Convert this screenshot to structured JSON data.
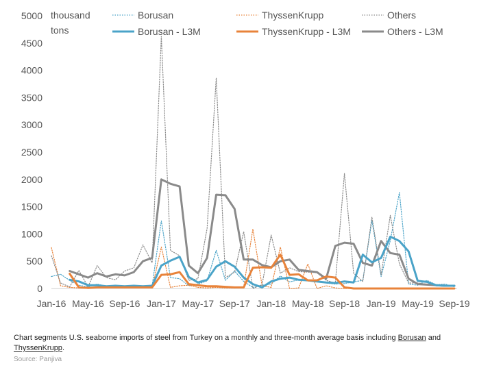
{
  "chart_data": {
    "type": "line",
    "ylabel": "thousand tons",
    "ylim": [
      0,
      5000
    ],
    "yticks": [
      0,
      500,
      1000,
      1500,
      2000,
      2500,
      3000,
      3500,
      4000,
      4500,
      5000
    ],
    "x": [
      "Jan-16",
      "Feb-16",
      "Mar-16",
      "Apr-16",
      "May-16",
      "Jun-16",
      "Jul-16",
      "Aug-16",
      "Sep-16",
      "Oct-16",
      "Nov-16",
      "Dec-16",
      "Jan-17",
      "Feb-17",
      "Mar-17",
      "Apr-17",
      "May-17",
      "Jun-17",
      "Jul-17",
      "Aug-17",
      "Sep-17",
      "Oct-17",
      "Nov-17",
      "Dec-17",
      "Jan-18",
      "Feb-18",
      "Mar-18",
      "Apr-18",
      "May-18",
      "Jun-18",
      "Jul-18",
      "Aug-18",
      "Sep-18",
      "Oct-18",
      "Nov-18",
      "Dec-18",
      "Jan-19",
      "Feb-19",
      "Mar-19",
      "Apr-19",
      "May-19",
      "Jun-19",
      "Jul-19",
      "Aug-19",
      "Sep-19"
    ],
    "xtick_labels": [
      "Jan-16",
      "May-16",
      "Sep-16",
      "Jan-17",
      "May-17",
      "Sep-17",
      "Jan-18",
      "May-18",
      "Sep-18",
      "Jan-19",
      "May-19",
      "Sep-19"
    ],
    "grid": false,
    "legend": "top",
    "series": [
      {
        "name": "Borusan",
        "style": "dotted",
        "color": "#4aa3c8",
        "values": [
          220,
          260,
          150,
          60,
          30,
          80,
          40,
          60,
          40,
          50,
          40,
          50,
          1240,
          200,
          180,
          50,
          80,
          140,
          700,
          150,
          320,
          130,
          20,
          60,
          80,
          230,
          120,
          160,
          140,
          120,
          100,
          80,
          90,
          120,
          150,
          1250,
          220,
          880,
          1760,
          80,
          60,
          150,
          70,
          80,
          30
        ]
      },
      {
        "name": "ThyssenKrupp",
        "style": "dotted",
        "color": "#e8833a",
        "values": [
          750,
          50,
          20,
          10,
          10,
          20,
          10,
          20,
          10,
          20,
          20,
          10,
          760,
          20,
          50,
          60,
          20,
          10,
          20,
          10,
          10,
          30,
          1090,
          50,
          20,
          760,
          0,
          10,
          450,
          0,
          50,
          10,
          0,
          0,
          0,
          0,
          0,
          0,
          0,
          0,
          0,
          0,
          0,
          0,
          0
        ]
      },
      {
        "name": "Others",
        "style": "dotted",
        "color": "#8a8a8a",
        "values": [
          600,
          100,
          30,
          330,
          30,
          420,
          200,
          160,
          320,
          380,
          800,
          470,
          4620,
          700,
          600,
          150,
          180,
          1100,
          3860,
          200,
          300,
          1040,
          0,
          70,
          980,
          280,
          380,
          310,
          300,
          290,
          150,
          100,
          2110,
          280,
          130,
          1310,
          250,
          1340,
          450,
          100,
          100,
          80,
          50,
          40,
          60
        ]
      },
      {
        "name": "Borusan - L3M",
        "style": "solid",
        "color": "#4aa3c8",
        "values": [
          null,
          null,
          160,
          130,
          60,
          60,
          40,
          50,
          40,
          50,
          40,
          50,
          420,
          510,
          580,
          210,
          110,
          160,
          400,
          500,
          400,
          200,
          80,
          20,
          130,
          180,
          200,
          160,
          150,
          130,
          110,
          100,
          130,
          110,
          620,
          480,
          560,
          950,
          870,
          680,
          140,
          120,
          60,
          50,
          50
        ]
      },
      {
        "name": "ThyssenKrupp - L3M",
        "style": "solid",
        "color": "#e8833a",
        "values": [
          null,
          null,
          270,
          20,
          10,
          20,
          20,
          20,
          20,
          20,
          20,
          20,
          250,
          260,
          300,
          80,
          60,
          40,
          40,
          30,
          20,
          20,
          380,
          390,
          380,
          620,
          250,
          260,
          150,
          150,
          220,
          200,
          20,
          0,
          0,
          0,
          0,
          0,
          0,
          0,
          0,
          0,
          0,
          0,
          0
        ]
      },
      {
        "name": "Others - L3M",
        "style": "solid",
        "color": "#8a8a8a",
        "values": [
          null,
          null,
          320,
          260,
          200,
          280,
          220,
          260,
          240,
          300,
          500,
          560,
          2000,
          1920,
          1870,
          420,
          280,
          560,
          1720,
          1710,
          1460,
          530,
          530,
          430,
          390,
          500,
          530,
          340,
          320,
          300,
          180,
          780,
          840,
          820,
          470,
          420,
          870,
          650,
          620,
          180,
          80,
          70,
          60,
          50,
          50
        ]
      }
    ]
  },
  "caption": {
    "prefix": "Chart segments U.S. seaborne imports of steel from Turkey on a monthly and three-month average basis including ",
    "link1": "Borusan",
    "middle": " and ",
    "link2": "ThyssenKrupp",
    "suffix": "."
  },
  "source": "Source: Panjiva"
}
